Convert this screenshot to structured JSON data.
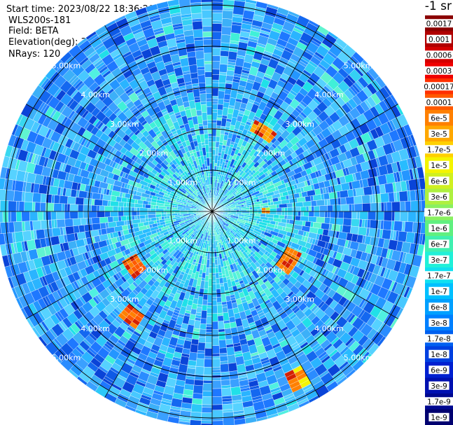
{
  "header": {
    "start_time": "Start time: 2023/08/22 18:36:20",
    "instrument": "WLS200s-181",
    "field": "Field: BETA",
    "elevation": "Elevation(deg): 35.30",
    "nrays": "NRays: 120"
  },
  "chart_data": {
    "type": "heatmap",
    "projection": "polar-ppi",
    "field": "BETA",
    "n_rays": 120,
    "unit_label": "-1 sr",
    "range_rings_km": [
      1,
      2,
      3,
      4,
      5
    ],
    "ring_labels": {
      "1": "1.00km",
      "2": "2.00km",
      "3": "3.00km",
      "4": "4.00km",
      "5": "5.00km"
    },
    "max_range_km": 5.2,
    "spoke_angles_deg": [
      0,
      30,
      60,
      90,
      120,
      150,
      180,
      210,
      240,
      270,
      300,
      330
    ],
    "colorbar": {
      "labels": [
        "0.0017",
        "0.001",
        "0.0006",
        "0.0003",
        "0.00017",
        "0.0001",
        "6e-5",
        "3e-5",
        "1.7e-5",
        "1e-5",
        "6e-6",
        "3e-6",
        "1.7e-6",
        "1e-6",
        "6e-7",
        "3e-7",
        "1.7e-7",
        "1e-7",
        "6e-8",
        "3e-8",
        "1.7e-8",
        "1e-8",
        "6e-9",
        "3e-9",
        "1.7e-9",
        "1e-9"
      ],
      "colors": [
        "#8b0000",
        "#b00000",
        "#d40000",
        "#f00000",
        "#ff3000",
        "#ff5a00",
        "#ff8000",
        "#ffa800",
        "#ffd000",
        "#f4f400",
        "#d0f020",
        "#aef040",
        "#8af060",
        "#60f080",
        "#40f0b0",
        "#20f0d8",
        "#10e0f0",
        "#00c0ff",
        "#00a0ff",
        "#0080ff",
        "#0060f0",
        "#0040e0",
        "#0020d0",
        "#0010b0",
        "#000890",
        "#000070"
      ]
    },
    "hotspots": [
      {
        "az_start": 25,
        "az_end": 38,
        "r_start": 2.15,
        "r_end": 2.45,
        "level": "3e-5"
      },
      {
        "az_start": 115,
        "az_end": 128,
        "r_start": 2.0,
        "r_end": 2.35,
        "level": "6e-5"
      },
      {
        "az_start": 229,
        "az_end": 240,
        "r_start": 2.1,
        "r_end": 2.5,
        "level": "1e-4"
      },
      {
        "az_start": 213,
        "az_end": 221,
        "r_start": 3.0,
        "r_end": 3.4,
        "level": "1e-4"
      },
      {
        "az_start": 150,
        "az_end": 154,
        "r_start": 4.3,
        "r_end": 4.7,
        "level": "1e-5"
      },
      {
        "az_start": 86,
        "az_end": 90,
        "r_start": 1.2,
        "r_end": 1.4,
        "level": "3e-6"
      }
    ]
  }
}
